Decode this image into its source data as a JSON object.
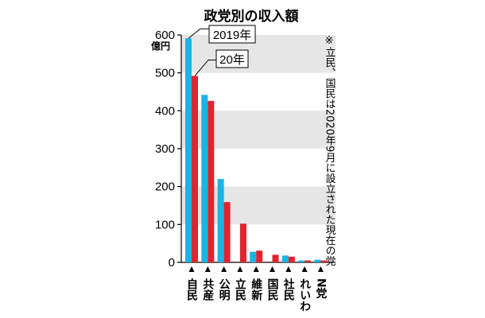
{
  "chart_data": {
    "type": "bar",
    "title": "政党別の収入額",
    "y_unit": "億円",
    "ylim": [
      0,
      600
    ],
    "y_ticks": [
      "0",
      "100",
      "200",
      "300",
      "400",
      "500",
      "600"
    ],
    "note": "※立民、国民は2020年9月に設立された現在の党",
    "categories": [
      "自民",
      "共産",
      "公明",
      "立民",
      "維新",
      "国民",
      "社民",
      "れいわ",
      "N党"
    ],
    "series": [
      {
        "name": "2019年",
        "color": "#1ab4e6",
        "values": [
          591,
          442,
          220,
          0,
          28,
          0,
          18,
          5,
          7
        ]
      },
      {
        "name": "20年",
        "color": "#e02430",
        "values": [
          492,
          426,
          159,
          102,
          31,
          20,
          15,
          5,
          5
        ]
      }
    ],
    "bands": [
      [
        100,
        200
      ],
      [
        300,
        400
      ],
      [
        500,
        600
      ]
    ],
    "legend_placement": "callouts-top-left"
  }
}
